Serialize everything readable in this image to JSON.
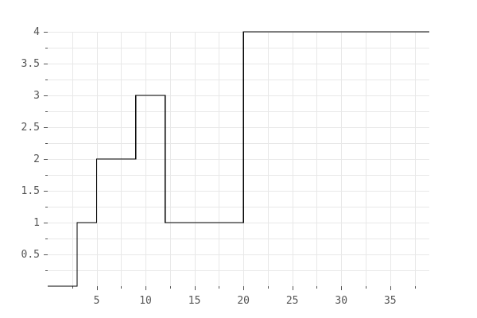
{
  "chart_data": {
    "type": "line",
    "style": "step-post",
    "title": "",
    "xlabel": "",
    "ylabel": "",
    "xlim": [
      0,
      39
    ],
    "ylim": [
      0,
      4
    ],
    "x_ticks": [
      5,
      10,
      15,
      20,
      25,
      30,
      35
    ],
    "y_ticks": [
      0.5,
      1,
      1.5,
      2,
      2.5,
      3,
      3.5,
      4
    ],
    "x_tick_labels": [
      "5",
      "10",
      "15",
      "20",
      "25",
      "30",
      "35"
    ],
    "y_tick_labels": [
      "0.5",
      "1",
      "1.5",
      "2",
      "2.5",
      "3",
      "3.5",
      "4"
    ],
    "grid": true,
    "grid_minor_step_x": 2.5,
    "grid_minor_step_y": 0.25,
    "series": [
      {
        "x": [
          0,
          3,
          5,
          9,
          12,
          20,
          39
        ],
        "y": [
          0,
          1,
          2,
          3,
          1,
          4,
          4
        ],
        "color": "#000000"
      }
    ],
    "colors": {
      "line": "#000000",
      "grid": "#e8e8e8",
      "axis": "#555555",
      "tick_text": "#555555"
    }
  }
}
